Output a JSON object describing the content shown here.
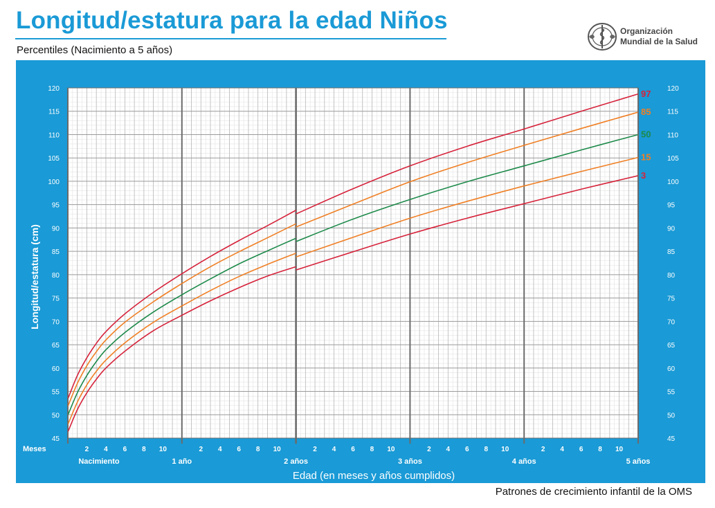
{
  "header": {
    "title": "Longitud/estatura para la edad Niños",
    "subtitle": "Percentiles (Nacimiento a 5 años)",
    "org_line1": "Organización",
    "org_line2": "Mundial de la Salud"
  },
  "footer": {
    "text": "Patrones de crecimiento infantil de la OMS"
  },
  "colors": {
    "panel": "#1a9ad6",
    "p3": "#d6223a",
    "p15": "#f07f24",
    "p50": "#1d8a4a",
    "p85": "#f07f24",
    "p97": "#d6223a"
  },
  "chart_data": {
    "type": "line",
    "title": "Longitud/estatura para la edad Niños",
    "ylabel": "Longitud/estatura (cm)",
    "xlabel": "Edad (en meses y años cumplidos)",
    "months_label": "Meses",
    "xlim": [
      0,
      60
    ],
    "ylim": [
      45,
      120
    ],
    "y_ticks": [
      45,
      50,
      55,
      60,
      65,
      70,
      75,
      80,
      85,
      90,
      95,
      100,
      105,
      110,
      115,
      120
    ],
    "month_tick_labels": [
      "2",
      "4",
      "6",
      "8",
      "10"
    ],
    "year_labels": [
      "Nacimiento",
      "1 año",
      "2 años",
      "3 años",
      "4 años",
      "5 años"
    ],
    "grid": true,
    "x": [
      0,
      1,
      2,
      3,
      4,
      6,
      9,
      12,
      15,
      18,
      21,
      24,
      30,
      36,
      42,
      48,
      54,
      60
    ],
    "series": [
      {
        "name": "3",
        "color": "#d6223a",
        "values_0_24": [
          46.3,
          51.1,
          54.7,
          57.6,
          60.0,
          63.6,
          68.0,
          71.3,
          74.4,
          77.2,
          79.7,
          81.7
        ],
        "values_24_60": [
          81.0,
          84.9,
          88.7,
          92.1,
          95.2,
          98.3,
          101.2
        ]
      },
      {
        "name": "15",
        "color": "#f07f24",
        "values_0_24": [
          47.9,
          52.7,
          56.4,
          59.3,
          61.7,
          65.4,
          69.8,
          73.3,
          76.6,
          79.6,
          82.2,
          84.6
        ],
        "values_24_60": [
          83.8,
          88.0,
          92.1,
          95.7,
          99.0,
          102.1,
          105.1
        ]
      },
      {
        "name": "50",
        "color": "#1d8a4a",
        "values_0_24": [
          49.9,
          54.7,
          58.4,
          61.4,
          63.9,
          67.6,
          72.0,
          75.7,
          79.1,
          82.3,
          85.1,
          87.8
        ],
        "values_24_60": [
          87.1,
          91.9,
          96.1,
          99.9,
          103.3,
          106.7,
          110.0
        ]
      },
      {
        "name": "85",
        "color": "#f07f24",
        "values_0_24": [
          51.8,
          56.7,
          60.5,
          63.5,
          66.0,
          69.8,
          74.2,
          78.1,
          81.7,
          84.9,
          87.9,
          90.9
        ],
        "values_24_60": [
          90.2,
          95.1,
          99.9,
          104.0,
          107.7,
          111.3,
          114.8
        ]
      },
      {
        "name": "97",
        "color": "#d6223a",
        "values_0_24": [
          53.4,
          58.4,
          62.2,
          65.3,
          67.8,
          71.6,
          76.2,
          80.2,
          83.9,
          87.3,
          90.5,
          93.8
        ],
        "values_24_60": [
          93.0,
          98.4,
          103.3,
          107.5,
          111.2,
          115.0,
          118.7
        ]
      }
    ],
    "x_0_24": [
      0,
      1,
      2,
      3,
      4,
      6,
      9,
      12,
      15,
      18,
      21,
      24
    ],
    "x_24_60": [
      24,
      30,
      36,
      42,
      48,
      54,
      60
    ]
  }
}
